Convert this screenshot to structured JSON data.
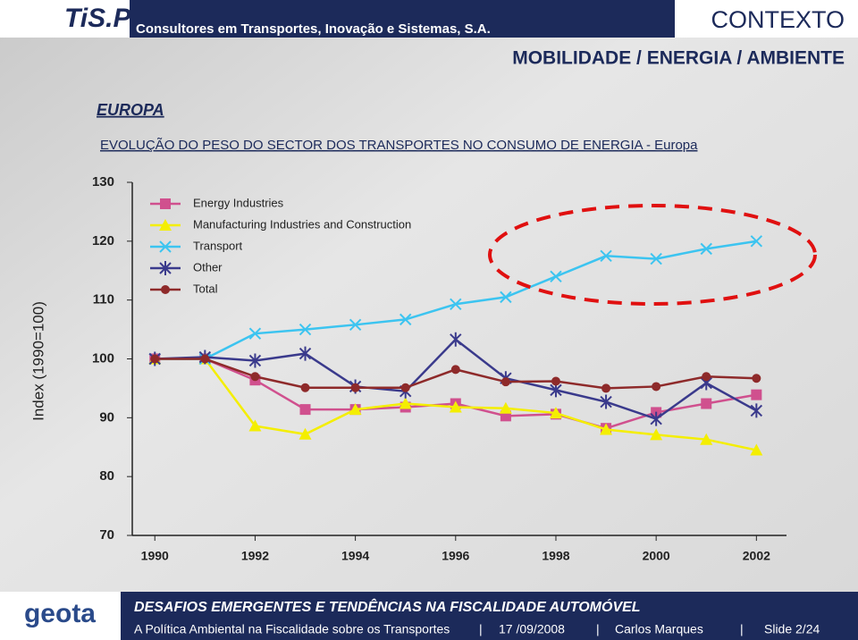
{
  "header": {
    "logo": "TiS.PT",
    "company": "Consultores em Transportes, Inovação e Sistemas, S.A.",
    "section": "CONTEXTO",
    "topic": "MOBILIDADE / ENERGIA / AMBIENTE"
  },
  "region": "EUROPA",
  "slide_title": "EVOLUÇÃO DO PESO DO SECTOR DOS TRANSPORTES NO CONSUMO DE ENERGIA - Europa",
  "chart_data": {
    "type": "line",
    "y_label": "Index (1990=100)",
    "x": [
      1990,
      1991,
      1992,
      1993,
      1994,
      1995,
      1996,
      1997,
      1998,
      1999,
      2000,
      2001,
      2002
    ],
    "series": [
      {
        "name": "Energy Industries",
        "color": "#d0508e",
        "marker": "square",
        "values": [
          100,
          100,
          96.4,
          91.4,
          91.4,
          91.8,
          92.4,
          90.3,
          90.6,
          88.2,
          90.9,
          92.4,
          93.9
        ]
      },
      {
        "name": "Manufacturing Industries and Construction",
        "color": "#f4ee00",
        "marker": "triangle",
        "values": [
          100,
          100,
          88.6,
          87.2,
          91.4,
          92.4,
          91.8,
          91.6,
          90.8,
          88,
          87.1,
          86.3,
          84.5
        ]
      },
      {
        "name": "Transport",
        "color": "#3cc4f0",
        "marker": "x",
        "values": [
          100,
          100,
          104.3,
          105,
          105.8,
          106.7,
          109.3,
          110.5,
          114,
          117.5,
          117,
          118.7,
          120
        ]
      },
      {
        "name": "Other",
        "color": "#3a3a8c",
        "marker": "star",
        "values": [
          100,
          100.3,
          99.7,
          100.9,
          95.3,
          94.5,
          103.3,
          96.7,
          94.7,
          92.7,
          89.8,
          95.9,
          91.2
        ]
      },
      {
        "name": "Total",
        "color": "#8e2a2a",
        "marker": "circle",
        "values": [
          100,
          100,
          97,
          95.1,
          95.1,
          95.1,
          98.2,
          96.1,
          96.2,
          95,
          95.3,
          97,
          96.7
        ]
      }
    ],
    "xlim": [
      1989.55,
      2002.6
    ],
    "xticks": [
      1990,
      1992,
      1994,
      1996,
      1998,
      2000,
      2002
    ],
    "ylim": [
      70,
      130
    ],
    "yticks": [
      70,
      80,
      90,
      100,
      110,
      120,
      130
    ],
    "grid": false
  },
  "footer": {
    "logo": "geota",
    "event": "DESAFIOS EMERGENTES E TENDÊNCIAS NA FISCALIDADE AUTOMÓVEL",
    "talk": "A Política Ambiental na Fiscalidade sobre os Transportes",
    "date": "17 /09/2008",
    "author": "Carlos Marques",
    "slide": "Slide 2/24"
  }
}
